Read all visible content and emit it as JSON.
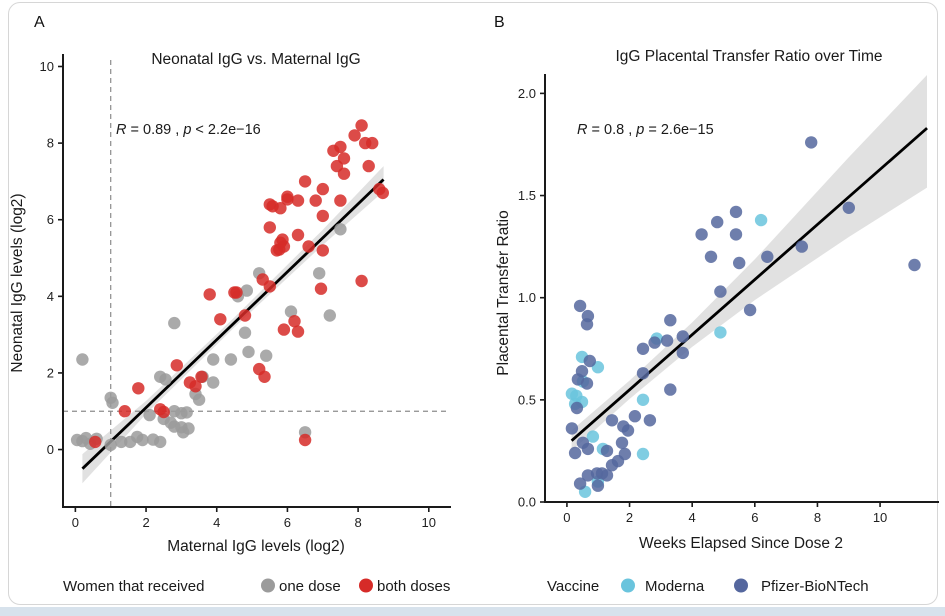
{
  "figure": {
    "panel_a_label": "A",
    "panel_b_label": "B"
  },
  "colors": {
    "one_dose": "#9b9b9b",
    "both_doses": "#d62b28",
    "moderna": "#6ac4dd",
    "pfizer_biontech": "#55679e",
    "regression_line": "#000000",
    "ci_band": "#d9d9d9",
    "axis": "#1a1a1a",
    "dashed_reference": "#8c8c8c",
    "card_border": "#d6d6d6",
    "bottom_strip": "#d7e2ec"
  },
  "chart_data": [
    {
      "id": "panel-a",
      "type": "scatter",
      "title": "Neonatal IgG vs. Maternal IgG",
      "stats_parts": {
        "r": "R",
        "eq": " = 0.89 , ",
        "p": "p",
        "rest": " < 2.2e−16"
      },
      "xlabel": "Maternal IgG levels (log2)",
      "ylabel": "Neonatal IgG levels (log2)",
      "xlim": [
        -0.35,
        10.6
      ],
      "ylim": [
        -1.5,
        10.3
      ],
      "xticks": [
        0,
        2,
        4,
        6,
        8,
        10
      ],
      "yticks": [
        0,
        2,
        4,
        6,
        8,
        10
      ],
      "xtick_labels": [
        "0",
        "2",
        "4",
        "6",
        "8",
        "10"
      ],
      "ytick_labels": [
        "0",
        "2",
        "4",
        "6",
        "8",
        "10"
      ],
      "grid": false,
      "legend_title": "Women that received",
      "reference_lines": {
        "vline_x": 1,
        "hline_y": 1
      },
      "regression": {
        "x": [
          0.2,
          8.72
        ],
        "y": [
          -0.5,
          7.05
        ]
      },
      "ci_band": {
        "x": [
          0.2,
          2.0,
          4.5,
          7.0,
          8.72
        ],
        "upper": [
          -0.12,
          1.27,
          3.45,
          5.74,
          7.4
        ],
        "lower": [
          -0.88,
          0.93,
          3.19,
          5.34,
          6.74
        ]
      },
      "series": [
        {
          "name": "one dose",
          "color": "#9b9b9b",
          "points": [
            [
              0.2,
              2.35
            ],
            [
              0.05,
              0.25
            ],
            [
              0.2,
              0.22
            ],
            [
              0.3,
              0.3
            ],
            [
              0.42,
              0.15
            ],
            [
              0.6,
              0.28
            ],
            [
              1.0,
              1.35
            ],
            [
              1.05,
              1.22
            ],
            [
              1.0,
              0.12
            ],
            [
              1.3,
              0.2
            ],
            [
              1.55,
              0.2
            ],
            [
              1.75,
              0.33
            ],
            [
              1.9,
              0.25
            ],
            [
              2.2,
              0.26
            ],
            [
              2.4,
              0.2
            ],
            [
              2.1,
              0.9
            ],
            [
              2.4,
              1.9
            ],
            [
              2.55,
              1.83
            ],
            [
              2.5,
              0.8
            ],
            [
              2.7,
              0.7
            ],
            [
              2.8,
              0.6
            ],
            [
              2.8,
              1.0
            ],
            [
              3.0,
              0.95
            ],
            [
              3.15,
              0.97
            ],
            [
              3.0,
              0.58
            ],
            [
              3.05,
              0.45
            ],
            [
              3.2,
              0.55
            ],
            [
              2.8,
              3.3
            ],
            [
              3.4,
              1.45
            ],
            [
              3.5,
              1.3
            ],
            [
              3.6,
              1.9
            ],
            [
              3.9,
              1.75
            ],
            [
              3.9,
              2.35
            ],
            [
              4.4,
              2.35
            ],
            [
              4.6,
              4.0
            ],
            [
              4.85,
              4.15
            ],
            [
              4.8,
              3.05
            ],
            [
              4.9,
              2.55
            ],
            [
              5.4,
              2.45
            ],
            [
              5.2,
              4.6
            ],
            [
              6.9,
              4.6
            ],
            [
              6.1,
              3.6
            ],
            [
              7.2,
              3.5
            ],
            [
              6.5,
              0.45
            ],
            [
              7.5,
              5.75
            ]
          ]
        },
        {
          "name": "both doses",
          "color": "#d62b28",
          "points": [
            [
              0.56,
              0.2
            ],
            [
              1.4,
              1.0
            ],
            [
              1.78,
              1.6
            ],
            [
              2.4,
              1.05
            ],
            [
              2.5,
              0.98
            ],
            [
              2.87,
              2.2
            ],
            [
              3.24,
              1.75
            ],
            [
              3.4,
              1.65
            ],
            [
              3.57,
              1.9
            ],
            [
              3.8,
              4.05
            ],
            [
              4.5,
              4.1
            ],
            [
              4.1,
              3.4
            ],
            [
              4.8,
              3.5
            ],
            [
              5.2,
              2.1
            ],
            [
              5.35,
              1.9
            ],
            [
              6.5,
              0.25
            ],
            [
              6.95,
              4.2
            ],
            [
              8.1,
              4.4
            ],
            [
              6.2,
              3.35
            ],
            [
              5.9,
              3.13
            ],
            [
              6.3,
              3.08
            ],
            [
              4.56,
              4.1
            ],
            [
              5.3,
              4.44
            ],
            [
              5.5,
              4.26
            ],
            [
              5.77,
              5.22
            ],
            [
              5.7,
              5.2
            ],
            [
              5.86,
              5.48
            ],
            [
              5.5,
              5.8
            ],
            [
              5.58,
              6.35
            ],
            [
              6.0,
              6.53
            ],
            [
              5.5,
              6.4
            ],
            [
              5.8,
              6.3
            ],
            [
              6.0,
              6.6
            ],
            [
              6.3,
              6.5
            ],
            [
              6.5,
              7.0
            ],
            [
              7.0,
              6.8
            ],
            [
              6.8,
              6.5
            ],
            [
              7.5,
              6.5
            ],
            [
              8.6,
              6.8
            ],
            [
              8.7,
              6.7
            ],
            [
              6.3,
              5.6
            ],
            [
              5.8,
              5.4
            ],
            [
              5.9,
              5.3
            ],
            [
              6.6,
              5.3
            ],
            [
              7.0,
              5.2
            ],
            [
              7.3,
              7.8
            ],
            [
              7.5,
              7.9
            ],
            [
              7.4,
              7.4
            ],
            [
              7.6,
              7.6
            ],
            [
              7.6,
              7.2
            ],
            [
              7.9,
              8.2
            ],
            [
              8.1,
              8.46
            ],
            [
              8.2,
              8.0
            ],
            [
              8.4,
              8.0
            ],
            [
              8.3,
              7.4
            ],
            [
              7.0,
              6.1
            ]
          ]
        }
      ]
    },
    {
      "id": "panel-b",
      "type": "scatter",
      "title": "IgG Placental Transfer Ratio over Time",
      "stats_parts": {
        "r": "R",
        "eq": " = 0.8 , ",
        "p": "p",
        "rest": " = 2.6e−15"
      },
      "xlabel": "Weeks Elapsed Since Dose 2",
      "ylabel": "Placental Transfer Ratio",
      "xlim": [
        -0.7,
        11.85
      ],
      "ylim": [
        0,
        2.09
      ],
      "xticks": [
        0,
        2,
        4,
        6,
        8,
        10
      ],
      "yticks": [
        0,
        0.5,
        1.0,
        1.5,
        2.0
      ],
      "xtick_labels": [
        "0",
        "2",
        "4",
        "6",
        "8",
        "10"
      ],
      "ytick_labels": [
        "0.0",
        "0.5",
        "1.0",
        "1.5",
        "2.0"
      ],
      "grid": false,
      "legend_title": "Vaccine",
      "reference_lines": null,
      "regression": {
        "x": [
          0.15,
          11.5
        ],
        "y": [
          0.3,
          1.83
        ]
      },
      "ci_band": {
        "x": [
          0.15,
          2.0,
          4.0,
          6.0,
          9.0,
          11.5
        ],
        "upper": [
          0.35,
          0.594,
          0.879,
          1.188,
          1.687,
          2.119
        ],
        "lower": [
          0.25,
          0.504,
          0.759,
          0.988,
          1.297,
          1.539
        ]
      },
      "series": [
        {
          "name": "Moderna",
          "color": "#6ac4dd",
          "points": [
            [
              0.16,
              0.53
            ],
            [
              0.26,
              0.48
            ],
            [
              0.48,
              0.49
            ],
            [
              0.48,
              0.71
            ],
            [
              0.51,
              0.59
            ],
            [
              0.99,
              0.66
            ],
            [
              0.83,
              0.32
            ],
            [
              1.15,
              0.26
            ],
            [
              0.58,
              0.05
            ],
            [
              0.99,
              0.1
            ],
            [
              2.43,
              0.235
            ],
            [
              2.43,
              0.5
            ],
            [
              2.87,
              0.8
            ],
            [
              4.9,
              0.83
            ],
            [
              6.2,
              1.38
            ],
            [
              0.3,
              0.52
            ]
          ]
        },
        {
          "name": "Pfizer-BioNTech",
          "color": "#55679e",
          "points": [
            [
              0.42,
              0.96
            ],
            [
              0.67,
              0.91
            ],
            [
              0.64,
              0.87
            ],
            [
              3.3,
              0.89
            ],
            [
              2.43,
              0.75
            ],
            [
              2.8,
              0.78
            ],
            [
              3.2,
              0.79
            ],
            [
              3.7,
              0.81
            ],
            [
              3.7,
              0.73
            ],
            [
              0.73,
              0.69
            ],
            [
              0.48,
              0.64
            ],
            [
              0.35,
              0.6
            ],
            [
              0.64,
              0.58
            ],
            [
              0.32,
              0.46
            ],
            [
              2.43,
              0.63
            ],
            [
              3.3,
              0.55
            ],
            [
              1.44,
              0.4
            ],
            [
              1.8,
              0.37
            ],
            [
              1.95,
              0.35
            ],
            [
              2.17,
              0.42
            ],
            [
              2.65,
              0.4
            ],
            [
              0.16,
              0.36
            ],
            [
              0.51,
              0.29
            ],
            [
              0.26,
              0.24
            ],
            [
              0.67,
              0.26
            ],
            [
              1.76,
              0.29
            ],
            [
              1.28,
              0.25
            ],
            [
              1.63,
              0.2
            ],
            [
              1.85,
              0.235
            ],
            [
              1.44,
              0.18
            ],
            [
              0.96,
              0.14
            ],
            [
              1.12,
              0.14
            ],
            [
              0.67,
              0.13
            ],
            [
              1.28,
              0.13
            ],
            [
              0.42,
              0.09
            ],
            [
              0.99,
              0.08
            ],
            [
              4.3,
              1.31
            ],
            [
              4.8,
              1.37
            ],
            [
              5.4,
              1.42
            ],
            [
              5.4,
              1.31
            ],
            [
              4.6,
              1.2
            ],
            [
              5.5,
              1.17
            ],
            [
              4.9,
              1.03
            ],
            [
              6.4,
              1.2
            ],
            [
              5.85,
              0.94
            ],
            [
              7.8,
              1.76
            ],
            [
              9.0,
              1.44
            ],
            [
              7.5,
              1.25
            ],
            [
              11.1,
              1.16
            ]
          ]
        }
      ]
    }
  ]
}
